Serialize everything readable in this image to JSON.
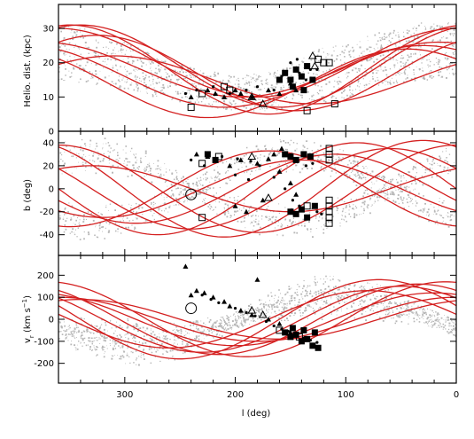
{
  "chart_data": [
    {
      "type": "scatter",
      "panel": "top",
      "xlabel": "l (deg)",
      "ylabel": "Helio. dist. (kpc)",
      "xlim": [
        360,
        0
      ],
      "ylim": [
        0,
        37
      ],
      "x_ticks": [
        300,
        200,
        100,
        0
      ],
      "y_ticks": [
        0,
        10,
        20,
        30
      ],
      "background_band": [
        {
          "l": 360,
          "lo": 15,
          "hi": 32
        },
        {
          "l": 330,
          "lo": 14,
          "hi": 30
        },
        {
          "l": 300,
          "lo": 12,
          "hi": 26
        },
        {
          "l": 270,
          "lo": 10,
          "hi": 22
        },
        {
          "l": 240,
          "lo": 8,
          "hi": 19
        },
        {
          "l": 200,
          "lo": 6,
          "hi": 16
        },
        {
          "l": 160,
          "lo": 6,
          "hi": 18
        },
        {
          "l": 130,
          "lo": 8,
          "hi": 24
        },
        {
          "l": 100,
          "lo": 10,
          "hi": 26
        },
        {
          "l": 60,
          "lo": 14,
          "hi": 30
        },
        {
          "l": 30,
          "lo": 15,
          "hi": 32
        },
        {
          "l": 0,
          "lo": 16,
          "hi": 32
        }
      ],
      "model_orbits": [
        {
          "amplitude": 10,
          "mean": 20,
          "phase": 0
        },
        {
          "amplitude": 12,
          "mean": 19,
          "phase": 20
        },
        {
          "amplitude": 8,
          "mean": 18,
          "phase": -15
        },
        {
          "amplitude": 11,
          "mean": 17,
          "phase": 35
        },
        {
          "amplitude": 9,
          "mean": 16,
          "phase": -30
        },
        {
          "amplitude": 13,
          "mean": 18,
          "phase": 10
        },
        {
          "amplitude": 7,
          "mean": 15,
          "phase": 50
        },
        {
          "amplitude": 10,
          "mean": 14,
          "phase": -45
        }
      ],
      "filled_squares": [
        [
          155,
          17
        ],
        [
          150,
          15
        ],
        [
          145,
          18
        ],
        [
          140,
          16
        ],
        [
          135,
          19
        ],
        [
          130,
          15
        ],
        [
          148,
          13
        ],
        [
          160,
          15
        ],
        [
          138,
          12
        ]
      ],
      "open_squares": [
        [
          120,
          20
        ],
        [
          115,
          20
        ],
        [
          125,
          21
        ],
        [
          230,
          11
        ],
        [
          210,
          13
        ],
        [
          135,
          6
        ],
        [
          110,
          8
        ],
        [
          240,
          7
        ],
        [
          205,
          12
        ]
      ],
      "triangles": [
        [
          240,
          10
        ],
        [
          225,
          12
        ],
        [
          218,
          11
        ],
        [
          210,
          10
        ],
        [
          200,
          12
        ],
        [
          195,
          11
        ],
        [
          185,
          10
        ],
        [
          170,
          12
        ],
        [
          160,
          11
        ],
        [
          150,
          14
        ],
        [
          145,
          12
        ]
      ],
      "open_triangles": [
        [
          185,
          10
        ],
        [
          175,
          8
        ],
        [
          130,
          22
        ],
        [
          128,
          19
        ]
      ],
      "dots": [
        [
          245,
          11
        ],
        [
          235,
          12
        ],
        [
          220,
          13
        ],
        [
          205,
          11
        ],
        [
          190,
          12
        ],
        [
          180,
          13
        ],
        [
          165,
          12
        ],
        [
          158,
          16
        ],
        [
          142,
          17
        ],
        [
          136,
          15
        ],
        [
          132,
          18
        ],
        [
          126,
          18
        ],
        [
          150,
          20
        ],
        [
          144,
          21
        ]
      ]
    },
    {
      "type": "scatter",
      "panel": "middle",
      "xlabel": "l (deg)",
      "ylabel": "b (deg)",
      "xlim": [
        360,
        0
      ],
      "ylim": [
        -58,
        50
      ],
      "x_ticks": [
        300,
        200,
        100,
        0
      ],
      "y_ticks": [
        -40,
        -20,
        0,
        20,
        40
      ],
      "model_orbits": [
        {
          "amplitude": 40,
          "phase": 0
        },
        {
          "amplitude": 35,
          "phase": 30
        },
        {
          "amplitude": 30,
          "phase": -20
        },
        {
          "amplitude": 42,
          "phase": 60
        },
        {
          "amplitude": 25,
          "phase": -50
        },
        {
          "amplitude": 38,
          "phase": 90
        },
        {
          "amplitude": 20,
          "phase": 120
        },
        {
          "amplitude": 33,
          "phase": -80
        }
      ],
      "filled_squares": [
        [
          155,
          30
        ],
        [
          150,
          28
        ],
        [
          145,
          25
        ],
        [
          138,
          30
        ],
        [
          132,
          28
        ],
        [
          150,
          -20
        ],
        [
          145,
          -22
        ],
        [
          140,
          -18
        ],
        [
          135,
          -25
        ],
        [
          128,
          -15
        ],
        [
          225,
          30
        ],
        [
          218,
          25
        ]
      ],
      "open_squares": [
        [
          115,
          35
        ],
        [
          115,
          30
        ],
        [
          115,
          25
        ],
        [
          115,
          -10
        ],
        [
          115,
          -15
        ],
        [
          115,
          -20
        ],
        [
          115,
          -25
        ],
        [
          115,
          -30
        ],
        [
          230,
          22
        ],
        [
          215,
          28
        ],
        [
          230,
          -25
        ],
        [
          135,
          -15
        ]
      ],
      "triangles": [
        [
          235,
          30
        ],
        [
          225,
          28
        ],
        [
          205,
          20
        ],
        [
          195,
          25
        ],
        [
          180,
          22
        ],
        [
          170,
          26
        ],
        [
          160,
          15
        ],
        [
          150,
          5
        ],
        [
          145,
          -5
        ],
        [
          200,
          -15
        ],
        [
          190,
          -20
        ],
        [
          175,
          -10
        ],
        [
          165,
          30
        ],
        [
          158,
          35
        ]
      ],
      "open_triangles": [
        [
          185,
          28
        ],
        [
          170,
          -8
        ]
      ],
      "open_circles": [
        [
          240,
          -5
        ]
      ],
      "dots": [
        [
          240,
          25
        ],
        [
          228,
          20
        ],
        [
          212,
          28
        ],
        [
          198,
          26
        ],
        [
          186,
          24
        ],
        [
          178,
          20
        ],
        [
          165,
          10
        ],
        [
          155,
          0
        ],
        [
          148,
          -10
        ],
        [
          142,
          -15
        ],
        [
          136,
          20
        ],
        [
          130,
          22
        ],
        [
          126,
          -20
        ],
        [
          122,
          -22
        ],
        [
          200,
          12
        ],
        [
          188,
          8
        ]
      ]
    },
    {
      "type": "scatter",
      "panel": "bottom",
      "xlabel": "l (deg)",
      "ylabel": "v_r (km s^-1)",
      "xlim": [
        360,
        0
      ],
      "ylim": [
        -290,
        290
      ],
      "x_ticks": [
        300,
        200,
        100,
        0
      ],
      "y_ticks": [
        -200,
        -100,
        0,
        100,
        200
      ],
      "model_orbits": [
        {
          "amplitude": 150,
          "phase": 40
        },
        {
          "amplitude": 120,
          "phase": 70
        },
        {
          "amplitude": 180,
          "phase": 20
        },
        {
          "amplitude": 100,
          "phase": 90
        },
        {
          "amplitude": 160,
          "phase": 55
        },
        {
          "amplitude": 130,
          "phase": 10
        },
        {
          "amplitude": 90,
          "phase": 110
        },
        {
          "amplitude": 170,
          "phase": 80
        }
      ],
      "filled_squares": [
        [
          155,
          -60
        ],
        [
          150,
          -80
        ],
        [
          145,
          -70
        ],
        [
          140,
          -100
        ],
        [
          135,
          -90
        ],
        [
          130,
          -120
        ],
        [
          128,
          -60
        ],
        [
          125,
          -130
        ],
        [
          148,
          -40
        ],
        [
          138,
          -50
        ]
      ],
      "open_squares": [
        [
          160,
          -50
        ],
        [
          142,
          -80
        ]
      ],
      "triangles": [
        [
          245,
          240
        ],
        [
          240,
          110
        ],
        [
          235,
          130
        ],
        [
          228,
          120
        ],
        [
          220,
          100
        ],
        [
          210,
          80
        ],
        [
          205,
          60
        ],
        [
          195,
          40
        ],
        [
          185,
          20
        ],
        [
          180,
          180
        ],
        [
          170,
          0
        ],
        [
          160,
          -20
        ],
        [
          150,
          -60
        ]
      ],
      "open_triangles": [
        [
          185,
          40
        ],
        [
          175,
          20
        ]
      ],
      "open_circles": [
        [
          240,
          50
        ]
      ],
      "dots": [
        [
          230,
          110
        ],
        [
          222,
          90
        ],
        [
          215,
          75
        ],
        [
          200,
          50
        ],
        [
          190,
          30
        ],
        [
          182,
          15
        ],
        [
          172,
          -10
        ],
        [
          165,
          -30
        ],
        [
          158,
          -45
        ],
        [
          152,
          -55
        ],
        [
          146,
          -65
        ],
        [
          138,
          -85
        ],
        [
          132,
          -95
        ],
        [
          126,
          -105
        ]
      ]
    }
  ]
}
